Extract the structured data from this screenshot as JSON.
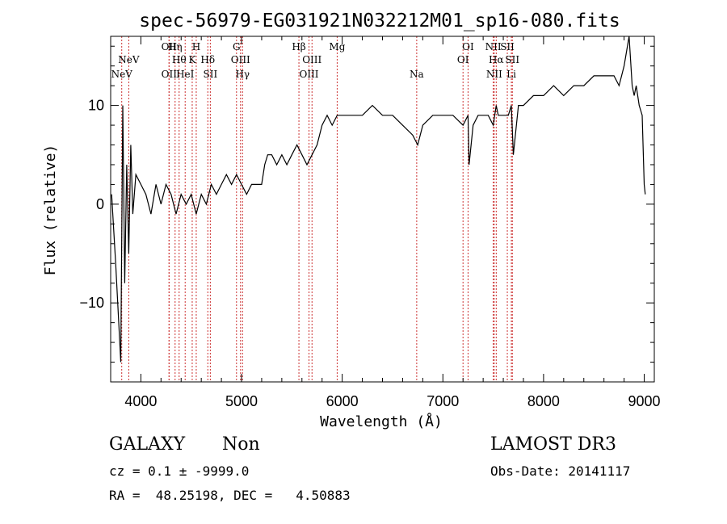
{
  "chart_data": {
    "type": "line",
    "title": "spec-56979-EG031921N032212M01_sp16-080.fits",
    "xlabel": "Wavelength (Å)",
    "ylabel": "Flux (relative)",
    "xlim": [
      3700,
      9100
    ],
    "ylim": [
      -18,
      17
    ],
    "xticks": [
      4000,
      5000,
      6000,
      7000,
      8000,
      9000
    ],
    "yticks": [
      -10,
      0,
      10
    ],
    "series": [
      {
        "name": "spectrum",
        "x": [
          3710,
          3750,
          3780,
          3800,
          3820,
          3840,
          3860,
          3880,
          3900,
          3920,
          3950,
          4000,
          4050,
          4100,
          4150,
          4200,
          4250,
          4300,
          4350,
          4400,
          4450,
          4500,
          4550,
          4600,
          4650,
          4700,
          4750,
          4800,
          4850,
          4900,
          4950,
          5000,
          5050,
          5100,
          5150,
          5200,
          5230,
          5260,
          5300,
          5350,
          5400,
          5450,
          5500,
          5550,
          5600,
          5650,
          5700,
          5750,
          5800,
          5850,
          5900,
          5950,
          6000,
          6100,
          6200,
          6300,
          6400,
          6500,
          6600,
          6700,
          6750,
          6800,
          6900,
          7000,
          7100,
          7200,
          7250,
          7260,
          7300,
          7350,
          7400,
          7450,
          7500,
          7530,
          7550,
          7600,
          7650,
          7680,
          7700,
          7750,
          7800,
          7900,
          8000,
          8100,
          8200,
          8300,
          8400,
          8500,
          8600,
          8700,
          8750,
          8800,
          8850,
          8880,
          8900,
          8920,
          8950,
          8980,
          9000,
          9010
        ],
        "values": [
          1,
          -6,
          -12,
          -16,
          10,
          -8,
          4,
          -5,
          6,
          -1,
          3,
          2,
          1,
          -1,
          2,
          0,
          2,
          1,
          -1,
          1,
          0,
          1,
          -1,
          1,
          0,
          2,
          1,
          2,
          3,
          2,
          3,
          2,
          1,
          2,
          2,
          2,
          4,
          5,
          5,
          4,
          5,
          4,
          5,
          6,
          5,
          4,
          5,
          6,
          8,
          9,
          8,
          9,
          9,
          9,
          9,
          10,
          9,
          9,
          8,
          7,
          6,
          8,
          9,
          9,
          9,
          8,
          9,
          4,
          8,
          9,
          9,
          9,
          8,
          10,
          9,
          9,
          9,
          10,
          5,
          10,
          10,
          11,
          11,
          12,
          11,
          12,
          12,
          13,
          13,
          13,
          12,
          14,
          17,
          12,
          11,
          12,
          10,
          9,
          2,
          1
        ]
      }
    ],
    "emission_lines": [
      {
        "label": "NeV",
        "x": 3810,
        "row": 3
      },
      {
        "label": "NeV",
        "x": 3880,
        "row": 2
      },
      {
        "label": "OII",
        "x": 4280,
        "row": 1
      },
      {
        "label": "OII",
        "x": 4280,
        "row": 3
      },
      {
        "label": "Hη",
        "x": 4340,
        "row": 1
      },
      {
        "label": "Hθ",
        "x": 4380,
        "row": 2
      },
      {
        "label": "HeI",
        "x": 4440,
        "row": 3
      },
      {
        "label": "K",
        "x": 4510,
        "row": 2
      },
      {
        "label": "H",
        "x": 4550,
        "row": 1
      },
      {
        "label": "Hδ",
        "x": 4665,
        "row": 2
      },
      {
        "label": "SII",
        "x": 4690,
        "row": 3
      },
      {
        "label": "G",
        "x": 4950,
        "row": 1
      },
      {
        "label": "OIII",
        "x": 4990,
        "row": 2
      },
      {
        "label": "Hγ",
        "x": 5010,
        "row": 3
      },
      {
        "label": "Hβ",
        "x": 5570,
        "row": 1
      },
      {
        "label": "OIII",
        "x": 5700,
        "row": 2
      },
      {
        "label": "OIII",
        "x": 5670,
        "row": 3
      },
      {
        "label": "Mg",
        "x": 5950,
        "row": 1
      },
      {
        "label": "Na",
        "x": 6740,
        "row": 3
      },
      {
        "label": "OI",
        "x": 7250,
        "row": 1
      },
      {
        "label": "OI",
        "x": 7200,
        "row": 2
      },
      {
        "label": "NII",
        "x": 7500,
        "row": 1
      },
      {
        "label": "Hα",
        "x": 7530,
        "row": 2
      },
      {
        "label": "NII",
        "x": 7510,
        "row": 3
      },
      {
        "label": "SII",
        "x": 7640,
        "row": 1
      },
      {
        "label": "SII",
        "x": 7690,
        "row": 2
      },
      {
        "label": "Li",
        "x": 7680,
        "row": 3
      }
    ]
  },
  "info": {
    "classification": "GALAXY",
    "subclass": "Non",
    "survey": "LAMOST DR3",
    "cz": "cz = 0.1 ± -9999.0",
    "obs_date": "Obs-Date: 20141117",
    "coords": "RA =  48.25198, DEC =   4.50883"
  },
  "colors": {
    "line_marker": "#cc3333",
    "spectrum": "#000000",
    "axes": "#000000"
  }
}
